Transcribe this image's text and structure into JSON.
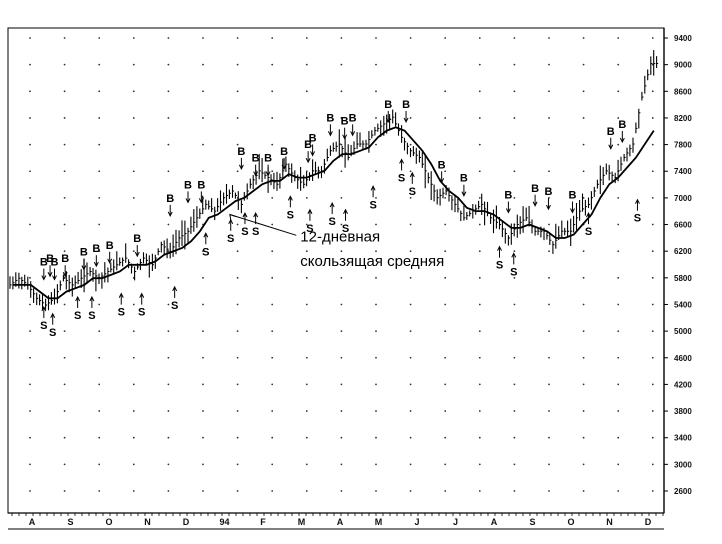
{
  "chart_data": {
    "type": "line",
    "title": "",
    "xlabel": "",
    "ylabel": "",
    "x_ticks": [
      "A",
      "S",
      "O",
      "N",
      "D",
      "94",
      "F",
      "M",
      "A",
      "M",
      "J",
      "J",
      "A",
      "S",
      "O",
      "N",
      "D"
    ],
    "y_ticks": [
      "9400",
      "9000",
      "8600",
      "8200",
      "7800",
      "7400",
      "7000",
      "6600",
      "6200",
      "5800",
      "5400",
      "5000",
      "4600",
      "4200",
      "3800",
      "3400",
      "3000",
      "2600"
    ],
    "ylim": [
      2400,
      9600
    ],
    "grid": "dotted",
    "series": [
      {
        "kind": "price-bars",
        "values": [
          5800,
          5900,
          5800,
          5600,
          5500,
          5600,
          5900,
          5800,
          5900,
          6000,
          5900,
          6000,
          6100,
          6200,
          6000,
          6200,
          6100,
          6400,
          6300,
          6500,
          6600,
          6800,
          7000,
          6900,
          7100,
          7200,
          7000,
          7300,
          7500,
          7400,
          7300,
          7600,
          7400,
          7300,
          7500,
          7500,
          7800,
          7900,
          7700,
          7900,
          7900,
          8100,
          8200,
          8300,
          8000,
          7800,
          7700,
          7400,
          7100,
          7200,
          7000,
          6800,
          6900,
          7000,
          6800,
          6700,
          6500,
          6700,
          6800,
          6600,
          6600,
          6400,
          6600,
          6600,
          6900,
          7000,
          7300,
          7500,
          7400,
          7700,
          7900,
          8600,
          9100
        ]
      },
      {
        "name": "12-дневная скользящая средняя",
        "kind": "moving-average",
        "values": [
          5800,
          5800,
          5800,
          5700,
          5600,
          5600,
          5700,
          5750,
          5800,
          5900,
          5900,
          5950,
          6000,
          6100,
          6100,
          6100,
          6150,
          6250,
          6300,
          6350,
          6450,
          6600,
          6800,
          6850,
          6950,
          7050,
          7100,
          7200,
          7300,
          7350,
          7350,
          7450,
          7400,
          7400,
          7450,
          7500,
          7650,
          7750,
          7750,
          7800,
          7850,
          8000,
          8100,
          8150,
          8100,
          7950,
          7800,
          7600,
          7350,
          7200,
          7100,
          6950,
          6900,
          6900,
          6850,
          6750,
          6650,
          6650,
          6700,
          6650,
          6600,
          6500,
          6500,
          6550,
          6700,
          6850,
          7100,
          7300,
          7400,
          7550,
          7700,
          7900,
          8100
        ]
      }
    ],
    "signals": [
      {
        "label": "B",
        "x": 3.8,
        "y": 5850
      },
      {
        "label": "B",
        "x": 4.5,
        "y": 5900
      },
      {
        "label": "B",
        "x": 5.0,
        "y": 5850
      },
      {
        "label": "B",
        "x": 6.2,
        "y": 5900
      },
      {
        "label": "B",
        "x": 8.3,
        "y": 6000
      },
      {
        "label": "B",
        "x": 9.7,
        "y": 6050
      },
      {
        "label": "B",
        "x": 11.2,
        "y": 6100
      },
      {
        "label": "B",
        "x": 14.3,
        "y": 6200
      },
      {
        "label": "B",
        "x": 18.0,
        "y": 6800
      },
      {
        "label": "B",
        "x": 20.0,
        "y": 7000
      },
      {
        "label": "B",
        "x": 21.5,
        "y": 7000
      },
      {
        "label": "B",
        "x": 26.0,
        "y": 7500
      },
      {
        "label": "B",
        "x": 27.6,
        "y": 7400
      },
      {
        "label": "B",
        "x": 29.0,
        "y": 7400
      },
      {
        "label": "B",
        "x": 30.8,
        "y": 7500
      },
      {
        "label": "B",
        "x": 33.5,
        "y": 7600
      },
      {
        "label": "B",
        "x": 34.0,
        "y": 7700
      },
      {
        "label": "B",
        "x": 36.0,
        "y": 8000
      },
      {
        "label": "B",
        "x": 37.6,
        "y": 7950
      },
      {
        "label": "B",
        "x": 38.5,
        "y": 8000
      },
      {
        "label": "B",
        "x": 42.5,
        "y": 8200
      },
      {
        "label": "B",
        "x": 44.5,
        "y": 8200
      },
      {
        "label": "B",
        "x": 48.5,
        "y": 7300
      },
      {
        "label": "B",
        "x": 51.0,
        "y": 7100
      },
      {
        "label": "B",
        "x": 56.0,
        "y": 6850
      },
      {
        "label": "B",
        "x": 59.0,
        "y": 6950
      },
      {
        "label": "B",
        "x": 60.5,
        "y": 6900
      },
      {
        "label": "B",
        "x": 63.2,
        "y": 6850
      },
      {
        "label": "B",
        "x": 67.5,
        "y": 7800
      },
      {
        "label": "B",
        "x": 68.8,
        "y": 7900
      },
      {
        "label": "S",
        "x": 3.8,
        "y": 5500
      },
      {
        "label": "S",
        "x": 4.8,
        "y": 5400
      },
      {
        "label": "S",
        "x": 7.6,
        "y": 5650
      },
      {
        "label": "S",
        "x": 9.2,
        "y": 5650
      },
      {
        "label": "S",
        "x": 12.5,
        "y": 5700
      },
      {
        "label": "S",
        "x": 14.8,
        "y": 5700
      },
      {
        "label": "S",
        "x": 18.5,
        "y": 5800
      },
      {
        "label": "S",
        "x": 22.0,
        "y": 6600
      },
      {
        "label": "S",
        "x": 24.8,
        "y": 6800
      },
      {
        "label": "S",
        "x": 26.4,
        "y": 6900
      },
      {
        "label": "S",
        "x": 27.6,
        "y": 6900
      },
      {
        "label": "S",
        "x": 31.5,
        "y": 7150
      },
      {
        "label": "S",
        "x": 33.7,
        "y": 6950
      },
      {
        "label": "S",
        "x": 36.2,
        "y": 7050
      },
      {
        "label": "S",
        "x": 37.7,
        "y": 6950
      },
      {
        "label": "S",
        "x": 40.8,
        "y": 7300
      },
      {
        "label": "S",
        "x": 44.0,
        "y": 7700
      },
      {
        "label": "S",
        "x": 45.2,
        "y": 7500
      },
      {
        "label": "S",
        "x": 55.0,
        "y": 6400
      },
      {
        "label": "S",
        "x": 56.6,
        "y": 6300
      },
      {
        "label": "S",
        "x": 65.0,
        "y": 6900
      },
      {
        "label": "S",
        "x": 70.5,
        "y": 7100
      }
    ],
    "annotations": [
      {
        "text": "12-дневная",
        "x": 27.0,
        "y": 6450
      },
      {
        "text": "скользящая средняя",
        "x": 27.0,
        "y": 6080
      }
    ]
  }
}
